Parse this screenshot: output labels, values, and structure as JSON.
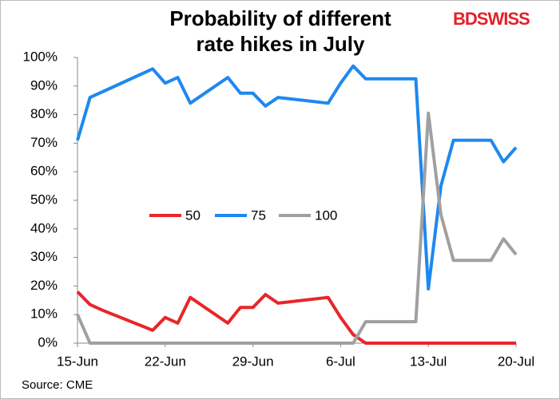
{
  "chart_data": {
    "type": "line",
    "title": "Probability of different rate hikes in July",
    "brand": "BDSWISS",
    "source": "Source: CME",
    "x": [
      "15-Jun",
      "16-Jun",
      "17-Jun",
      "21-Jun",
      "22-Jun",
      "23-Jun",
      "24-Jun",
      "27-Jun",
      "28-Jun",
      "29-Jun",
      "30-Jun",
      "1-Jul",
      "5-Jul",
      "6-Jul",
      "7-Jul",
      "8-Jul",
      "12-Jul",
      "13-Jul",
      "14-Jul",
      "15-Jul",
      "18-Jul",
      "19-Jul",
      "20-Jul"
    ],
    "xticks": [
      "15-Jun",
      "22-Jun",
      "29-Jun",
      "6-Jul",
      "13-Jul",
      "20-Jul"
    ],
    "series": [
      {
        "name": "50",
        "color": "#e8262b",
        "values": [
          18,
          13.5,
          11.5,
          4.5,
          9,
          7,
          16,
          7,
          12.5,
          12.5,
          17,
          14,
          16,
          9,
          3,
          0,
          0,
          0,
          0,
          0,
          0,
          0,
          0
        ]
      },
      {
        "name": "75",
        "color": "#1e88f0",
        "values": [
          71,
          86,
          88,
          96,
          91,
          93,
          84,
          93,
          87.5,
          87.5,
          83,
          86,
          84,
          91,
          97,
          92.5,
          92.5,
          19,
          55,
          71,
          71,
          63.5,
          68.5
        ]
      },
      {
        "name": "100",
        "color": "#a0a0a0",
        "values": [
          10,
          0,
          0,
          0,
          0,
          0,
          0,
          0,
          0,
          0,
          0,
          0,
          0,
          0,
          0,
          7.5,
          7.5,
          80.5,
          45,
          29,
          29,
          36.5,
          31
        ]
      }
    ],
    "ylim": [
      0,
      100
    ],
    "yticks": [
      {
        "value": 0,
        "label": "0%"
      },
      {
        "value": 10,
        "label": "10%"
      },
      {
        "value": 20,
        "label": "20%"
      },
      {
        "value": 30,
        "label": "30%"
      },
      {
        "value": 40,
        "label": "40%"
      },
      {
        "value": 50,
        "label": "50%"
      },
      {
        "value": 60,
        "label": "60%"
      },
      {
        "value": 70,
        "label": "70%"
      },
      {
        "value": 80,
        "label": "80%"
      },
      {
        "value": 90,
        "label": "90%"
      },
      {
        "value": 100,
        "label": "100%"
      }
    ],
    "legend": "center"
  }
}
